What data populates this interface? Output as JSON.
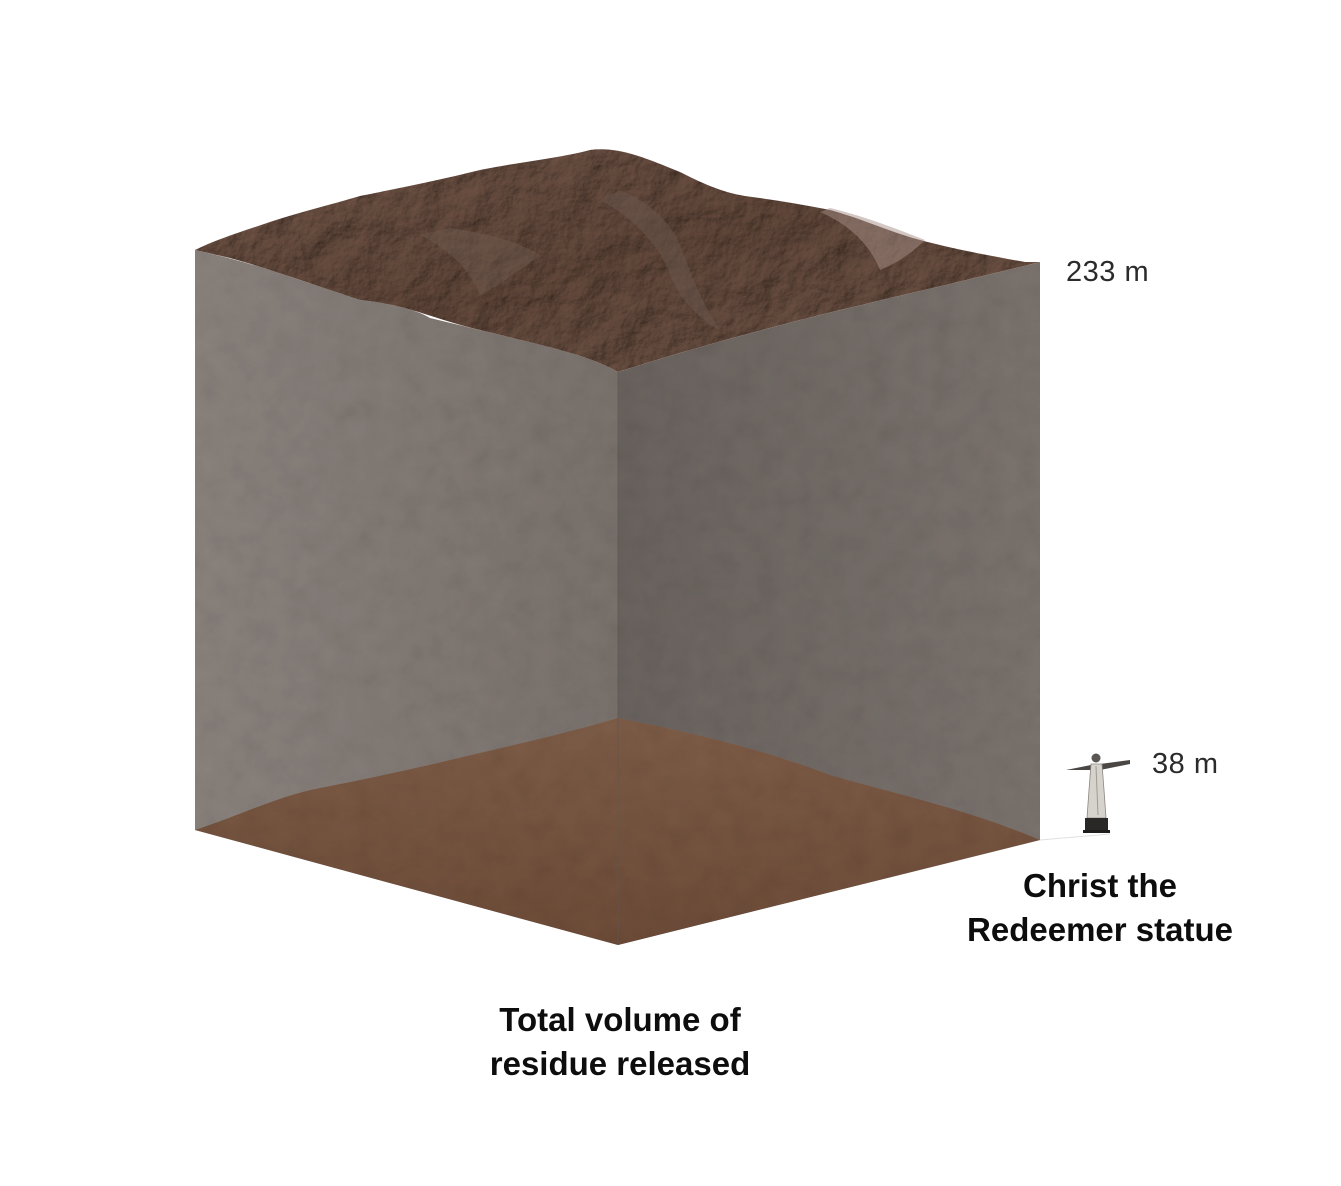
{
  "cube": {
    "height_label": "233 m",
    "caption_line1": "Total volume of",
    "caption_line2": "residue released",
    "colors": {
      "left_face": "#817975",
      "right_face": "#6e6762",
      "top_surface": "#7d6a60",
      "mud_fill": "#7a5a45"
    }
  },
  "statue": {
    "height_label": "38 m",
    "caption_line1": "Christ the",
    "caption_line2": "Redeemer statue",
    "icon": "christ-the-redeemer-statue-icon"
  }
}
